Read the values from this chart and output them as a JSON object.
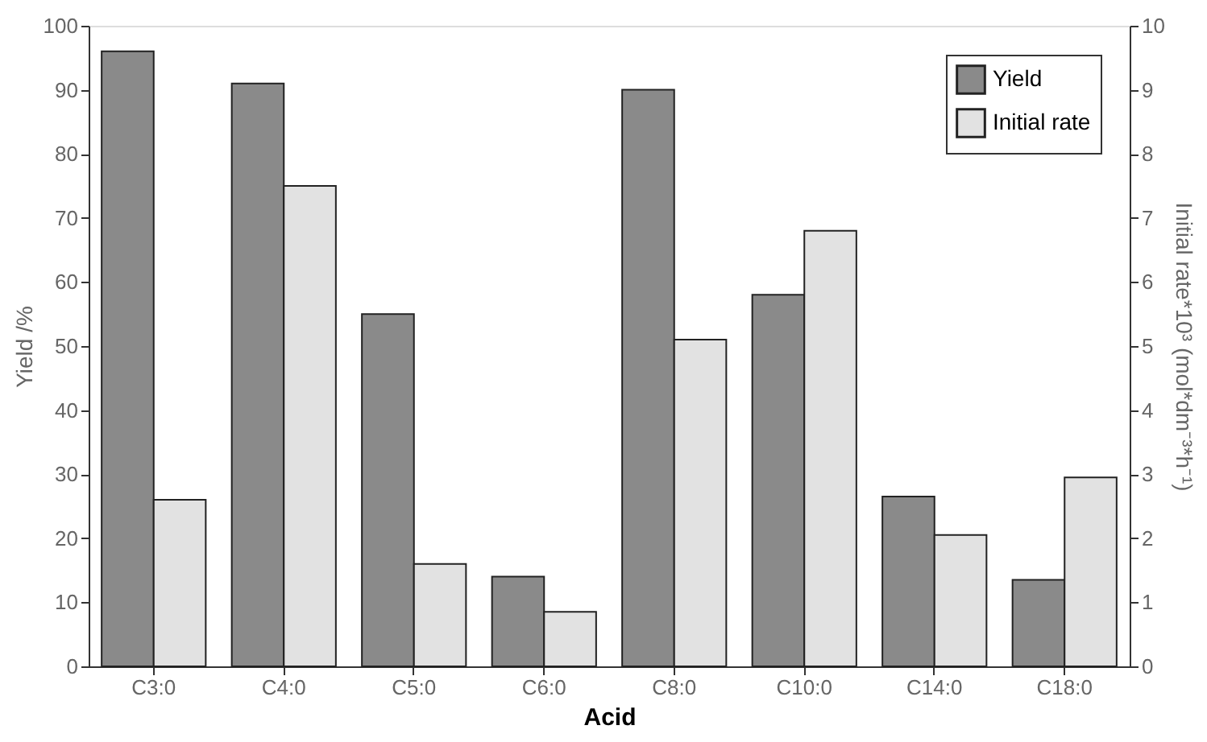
{
  "chart_data": {
    "type": "bar",
    "xlabel": "Acid",
    "ylabel": "Yield /%",
    "y2label": "Initial rate*10³ (mol*dm⁻³*h⁻¹)",
    "categories": [
      "C3:0",
      "C4:0",
      "C5:0",
      "C6:0",
      "C8:0",
      "C10:0",
      "C14:0",
      "C18:0"
    ],
    "series": [
      {
        "name": "Yield",
        "color": "#8a8a8a",
        "values": [
          96,
          91,
          55,
          14,
          90,
          58,
          26.5,
          13.5
        ]
      },
      {
        "name": "Initial rate",
        "color": "#e2e2e2",
        "axis": "y2",
        "values": [
          2.6,
          7.5,
          1.6,
          0.85,
          5.1,
          6.8,
          2.05,
          2.95
        ]
      }
    ],
    "ylim": [
      0,
      100
    ],
    "yticks": [
      0,
      10,
      20,
      30,
      40,
      50,
      60,
      70,
      80,
      90,
      100
    ],
    "y2lim": [
      0,
      10
    ],
    "y2ticks": [
      0,
      1,
      2,
      3,
      4,
      5,
      6,
      7,
      8,
      9,
      10
    ],
    "grid": false,
    "legend": "top right"
  }
}
